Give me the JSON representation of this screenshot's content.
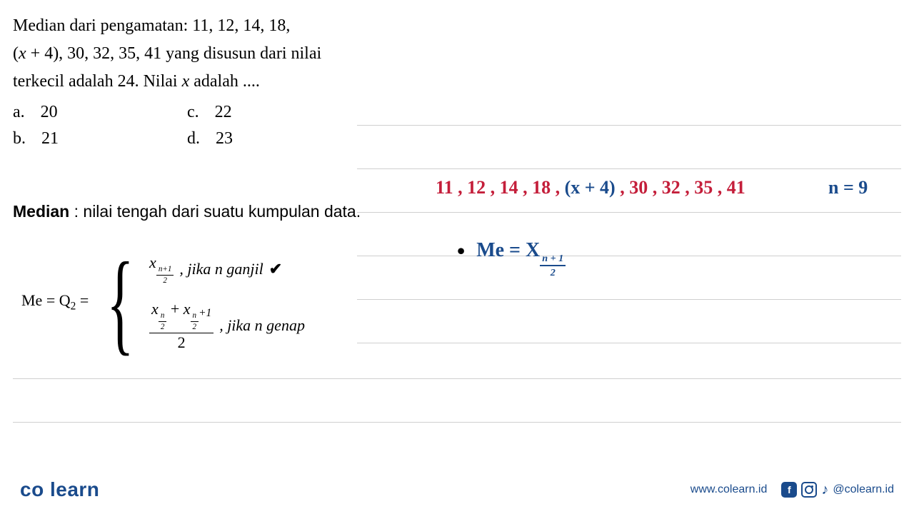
{
  "question": {
    "line1": "Median dari pengamatan: 11, 12, 14, 18,",
    "line2_prefix": "(",
    "line2_var": "x",
    "line2_rest": " + 4), 30, 32, 35, 41 yang disusun dari nilai",
    "line3_a": "terkecil adalah 24. Nilai ",
    "line3_var": "x",
    "line3_b": " adalah ...."
  },
  "choices": {
    "a": {
      "key": "a.",
      "val": "20"
    },
    "b": {
      "key": "b.",
      "val": "21"
    },
    "c": {
      "key": "c.",
      "val": "22"
    },
    "d": {
      "key": "d.",
      "val": "23"
    }
  },
  "definition": {
    "bold": "Median",
    "rest": " : nilai tengah dari suatu kumpulan data."
  },
  "formula": {
    "lhs": "Me = Q",
    "lhs_sub": "2",
    "lhs_eq": " = ",
    "case1_x": "x",
    "case1_sub_num": "n+1",
    "case1_sub_den": "2",
    "case1_label": ", jika n ganjil",
    "check": "✔",
    "case2_x1": "x",
    "case2_s1_num": "n",
    "case2_s1_den": "2",
    "case2_plus": " + ",
    "case2_x2": "x",
    "case2_s2_num": "n",
    "case2_s2_den": "2",
    "case2_s2_plus": "+1",
    "case2_den": "2",
    "case2_label": ", jika n genap"
  },
  "handwritten": {
    "data_prefix": "11 , 12 , 14 , 18 , ",
    "data_paren": "(x + 4)",
    "data_suffix": " , 30 , 32 , 35 , 41",
    "n_expr": "n = 9",
    "me_lhs": "Me = X",
    "me_num": "n + 1",
    "me_den": "2"
  },
  "footer": {
    "logo_a": "co",
    "logo_b": "learn",
    "url": "www.colearn.id",
    "handle": "@colearn.id",
    "fb": "f",
    "tiktok": "♪"
  },
  "colors": {
    "red": "#c41e3a",
    "blue": "#1a4b8c",
    "rule": "#cfcfcf",
    "text": "#000000",
    "bg": "#ffffff"
  }
}
